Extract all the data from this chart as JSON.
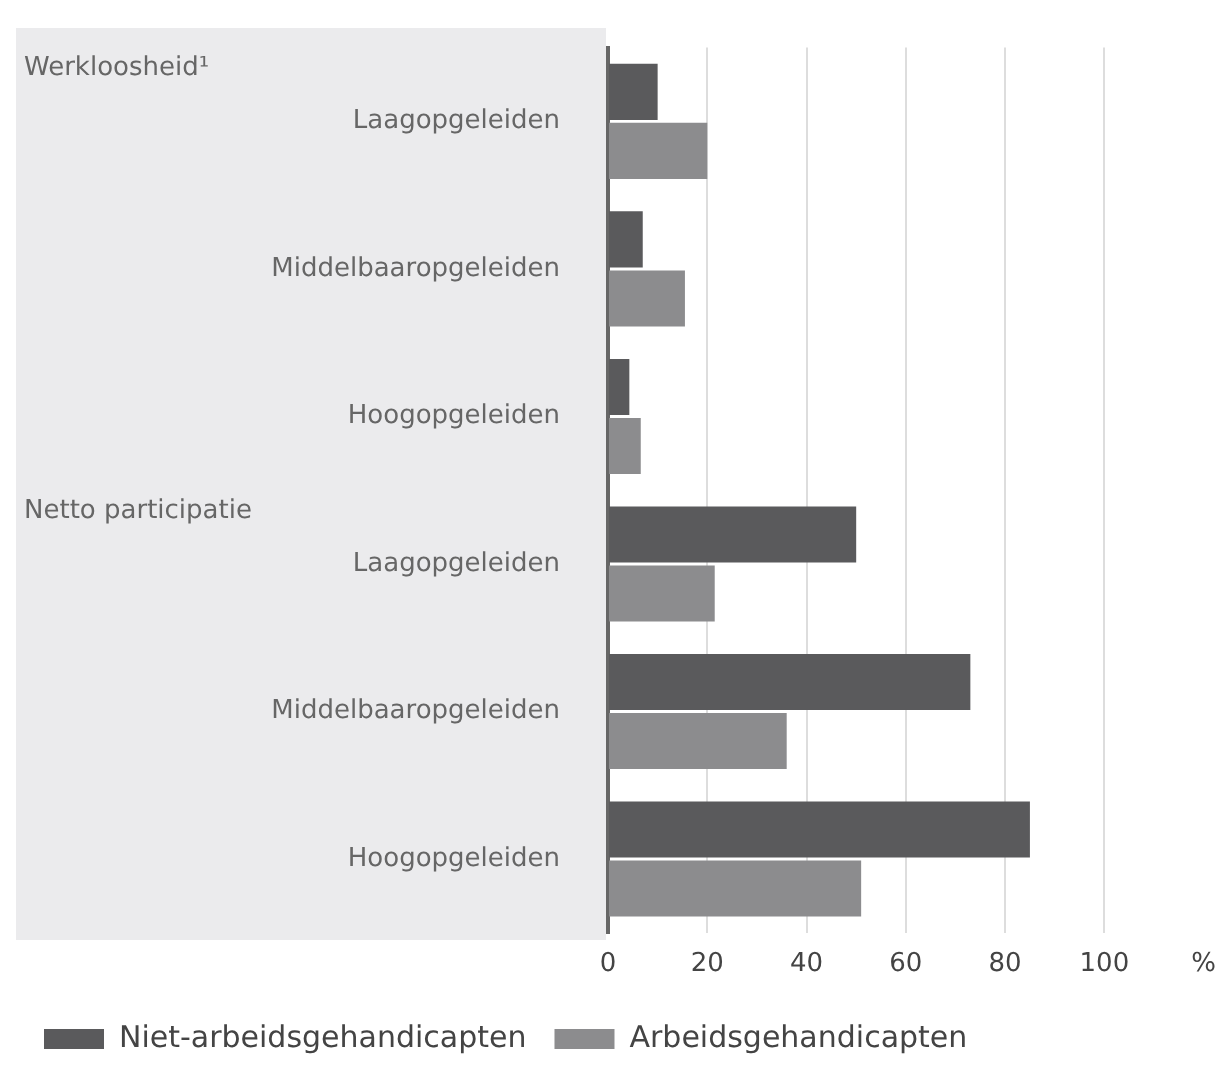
{
  "chart_data": {
    "type": "bar",
    "orientation": "horizontal",
    "categories": [
      "Laagopgeleiden",
      "Middelbaaropgeleiden",
      "Hoogopgeleiden",
      "Laagopgeleiden",
      "Middelbaaropgeleiden",
      "Hoogopgeleiden"
    ],
    "series": [
      {
        "name": "Niet-arbeidsgehandicapten",
        "color": "#5a5a5c",
        "values": [
          10,
          7,
          4.3,
          50,
          73,
          85
        ]
      },
      {
        "name": "Arbeidsgehandicapten",
        "color": "#8c8c8e",
        "values": [
          20,
          15.5,
          6.6,
          21.5,
          36,
          51
        ]
      }
    ],
    "xlim": [
      0,
      120
    ],
    "xticks": [
      0,
      20,
      40,
      60,
      80,
      100,
      {
        "value": 120,
        "label": "%"
      }
    ],
    "grid": "x",
    "legend": "bottom left",
    "annotations": [
      "Werkloosheid¹",
      "Netto participatie"
    ]
  }
}
